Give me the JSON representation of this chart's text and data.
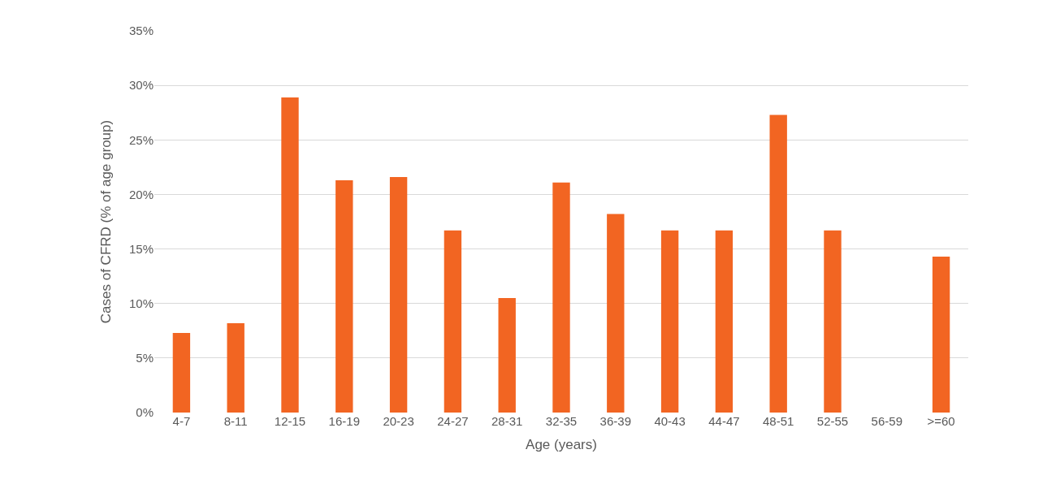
{
  "chart_data": {
    "type": "bar",
    "xlabel": "Age (years)",
    "ylabel": "Cases of CFRD (% of age group)",
    "categories": [
      "4-7",
      "8-11",
      "12-15",
      "16-19",
      "20-23",
      "24-27",
      "28-31",
      "32-35",
      "36-39",
      "40-43",
      "44-47",
      "48-51",
      "52-55",
      "56-59",
      ">=60"
    ],
    "values": [
      7.3,
      8.2,
      28.9,
      21.3,
      21.6,
      16.7,
      10.5,
      21.1,
      18.2,
      16.7,
      16.7,
      27.3,
      16.7,
      0,
      14.3
    ],
    "color": "#f26522",
    "ylim": [
      0,
      35
    ],
    "yticks": [
      {
        "value": 0,
        "label": "0%"
      },
      {
        "value": 5,
        "label": "5%"
      },
      {
        "value": 10,
        "label": "10%"
      },
      {
        "value": 15,
        "label": "15%"
      },
      {
        "value": 20,
        "label": "20%"
      },
      {
        "value": 25,
        "label": "25%"
      },
      {
        "value": 30,
        "label": "30%"
      },
      {
        "value": 35,
        "label": "35%"
      }
    ],
    "grid": "y",
    "legend": false
  }
}
